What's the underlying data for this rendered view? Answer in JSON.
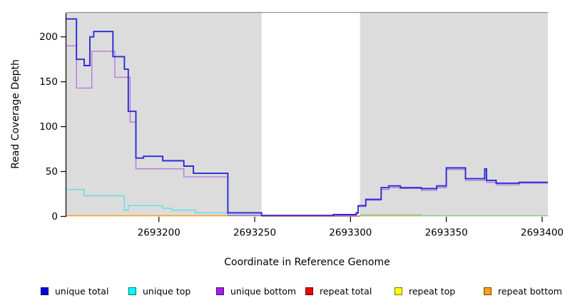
{
  "chart_data": {
    "type": "line",
    "title": "",
    "xlabel": "Coordinate in Reference Genome",
    "ylabel": "Read Coverage Depth",
    "xlim": [
      2693151.7,
      2693403
    ],
    "ylim": [
      0,
      226.8
    ],
    "x_ticks": [
      2693200,
      2693250,
      2693300,
      2693350,
      2693400
    ],
    "y_ticks": [
      0,
      50,
      100,
      150,
      200
    ],
    "grid": false,
    "legend_position": "bottom",
    "plot_background": "#DCDCDC",
    "no_data_region": {
      "x_start": 2693253.6,
      "x_end": 2693304.9,
      "color": "#FFFFFF"
    },
    "series": [
      {
        "name": "repeat total",
        "color": "#DD5C5C",
        "width": 1.5,
        "segments": [
          [
            [
              2693253.6,
              0.3
            ],
            [
              2693304.9,
              0.3
            ]
          ]
        ]
      },
      {
        "name": "repeat top",
        "color": "#8CCB8C",
        "width": 1.4,
        "note": "repeat top (yellow) overlapping unique top (cyan) at depth 0 renders as pale green",
        "segments": [
          [
            [
              2693337,
              0.8
            ],
            [
              2693403,
              0.8
            ]
          ]
        ]
      },
      {
        "name": "repeat bottom",
        "color": "#FF9D1E",
        "width": 1.6,
        "segments": [
          [
            [
              2693151.7,
              0.8
            ],
            [
              2693253.6,
              0.8
            ]
          ],
          [
            [
              2693304.9,
              0.8
            ],
            [
              2693337,
              0.8
            ]
          ]
        ]
      },
      {
        "name": "unique top",
        "color": "#4FE3E6",
        "width": 1.3,
        "segments": [
          [
            [
              2693151.7,
              30
            ],
            [
              2693161,
              23
            ],
            [
              2693182,
              7
            ],
            [
              2693184,
              12
            ],
            [
              2693202,
              9
            ],
            [
              2693207,
              7
            ],
            [
              2693219,
              4
            ],
            [
              2693236,
              1.5
            ],
            [
              2693253.6,
              1.5
            ]
          ],
          [
            [
              2693304.9,
              2
            ],
            [
              2693337,
              2
            ]
          ]
        ]
      },
      {
        "name": "unique bottom",
        "color": "#B073DE",
        "width": 1.3,
        "segments": [
          [
            [
              2693151.7,
              190
            ],
            [
              2693157,
              143
            ],
            [
              2693165,
              184
            ],
            [
              2693177,
              155
            ],
            [
              2693185,
              105
            ],
            [
              2693188,
              53
            ],
            [
              2693213,
              44
            ],
            [
              2693236,
              1
            ],
            [
              2693303,
              3
            ],
            [
              2693304,
              11
            ],
            [
              2693308,
              18
            ],
            [
              2693316,
              30
            ],
            [
              2693320,
              32
            ],
            [
              2693326,
              31
            ],
            [
              2693337,
              29
            ],
            [
              2693345,
              32
            ],
            [
              2693350,
              52
            ],
            [
              2693360,
              40
            ],
            [
              2693370,
              51
            ],
            [
              2693371,
              38
            ],
            [
              2693376,
              35
            ],
            [
              2693388,
              37
            ],
            [
              2693403,
              37
            ]
          ]
        ]
      },
      {
        "name": "unique total",
        "color": "#2B2BD5",
        "width": 1.9,
        "segments": [
          [
            [
              2693151.7,
              220
            ],
            [
              2693157,
              175
            ],
            [
              2693161,
              168
            ],
            [
              2693164,
              200
            ],
            [
              2693166,
              206
            ],
            [
              2693176,
              178
            ],
            [
              2693182,
              164
            ],
            [
              2693184,
              117
            ],
            [
              2693188,
              65
            ],
            [
              2693192,
              67
            ],
            [
              2693202,
              62
            ],
            [
              2693213,
              56
            ],
            [
              2693218,
              48
            ],
            [
              2693236,
              4
            ],
            [
              2693253.6,
              1
            ],
            [
              2693291,
              2
            ],
            [
              2693303,
              4
            ],
            [
              2693304,
              12
            ],
            [
              2693308,
              19
            ],
            [
              2693316,
              32
            ],
            [
              2693320,
              34
            ],
            [
              2693326,
              32
            ],
            [
              2693337,
              31
            ],
            [
              2693345,
              34
            ],
            [
              2693350,
              54
            ],
            [
              2693360,
              42
            ],
            [
              2693370,
              53
            ],
            [
              2693371,
              40
            ],
            [
              2693376,
              37
            ],
            [
              2693388,
              38
            ],
            [
              2693403,
              38
            ]
          ]
        ]
      }
    ]
  },
  "legend": {
    "items": [
      {
        "label": "unique total",
        "color": "#0000E0"
      },
      {
        "label": "unique top",
        "color": "#00FFFF"
      },
      {
        "label": "unique bottom",
        "color": "#A020F0"
      },
      {
        "label": "repeat total",
        "color": "#EE0000"
      },
      {
        "label": "repeat top",
        "color": "#FFFF00"
      },
      {
        "label": "repeat bottom",
        "color": "#FFA018"
      }
    ]
  }
}
